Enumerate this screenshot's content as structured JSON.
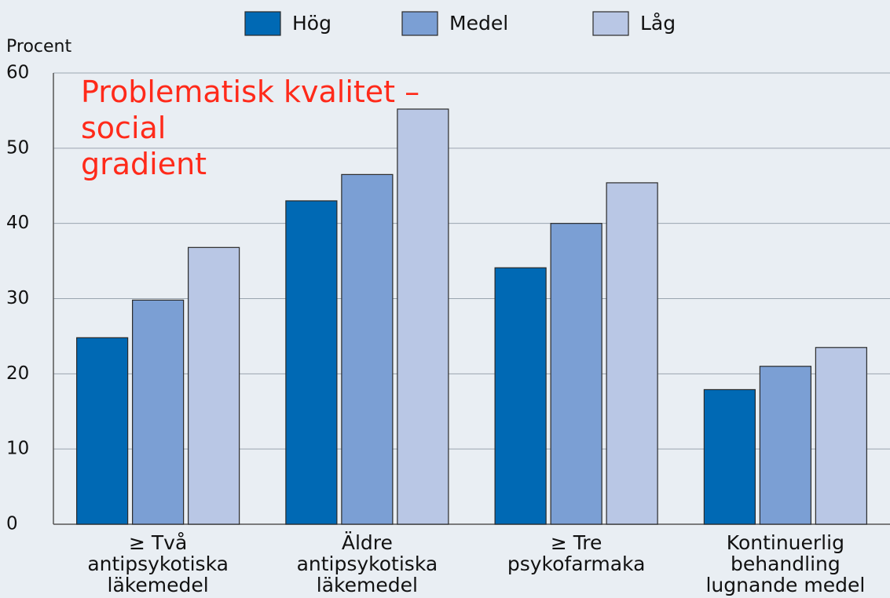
{
  "chart_data": {
    "type": "bar",
    "y_label": "Procent",
    "annotation": "Problematisk kvalitet –\nsocial\ngradient",
    "categories": [
      "≥ Två\nantipsykotiska\nläkemedel",
      "Äldre\nantipsykotiska\nläkemedel",
      "≥ Tre\npsykofarmaka",
      "Kontinuerlig\nbehandling\nlugnande medel"
    ],
    "series": [
      {
        "name": "Hög",
        "color": "#0069b4",
        "values": [
          24.8,
          43,
          34.1,
          17.9
        ]
      },
      {
        "name": "Medel",
        "color": "#7b9fd4",
        "values": [
          29.8,
          46.5,
          40,
          21
        ]
      },
      {
        "name": "Låg",
        "color": "#b9c7e5",
        "values": [
          36.8,
          55.2,
          45.4,
          23.5
        ]
      }
    ],
    "ylim": [
      0,
      60
    ],
    "yticks": [
      0,
      10,
      20,
      30,
      40,
      50,
      60
    ],
    "grid": true
  }
}
